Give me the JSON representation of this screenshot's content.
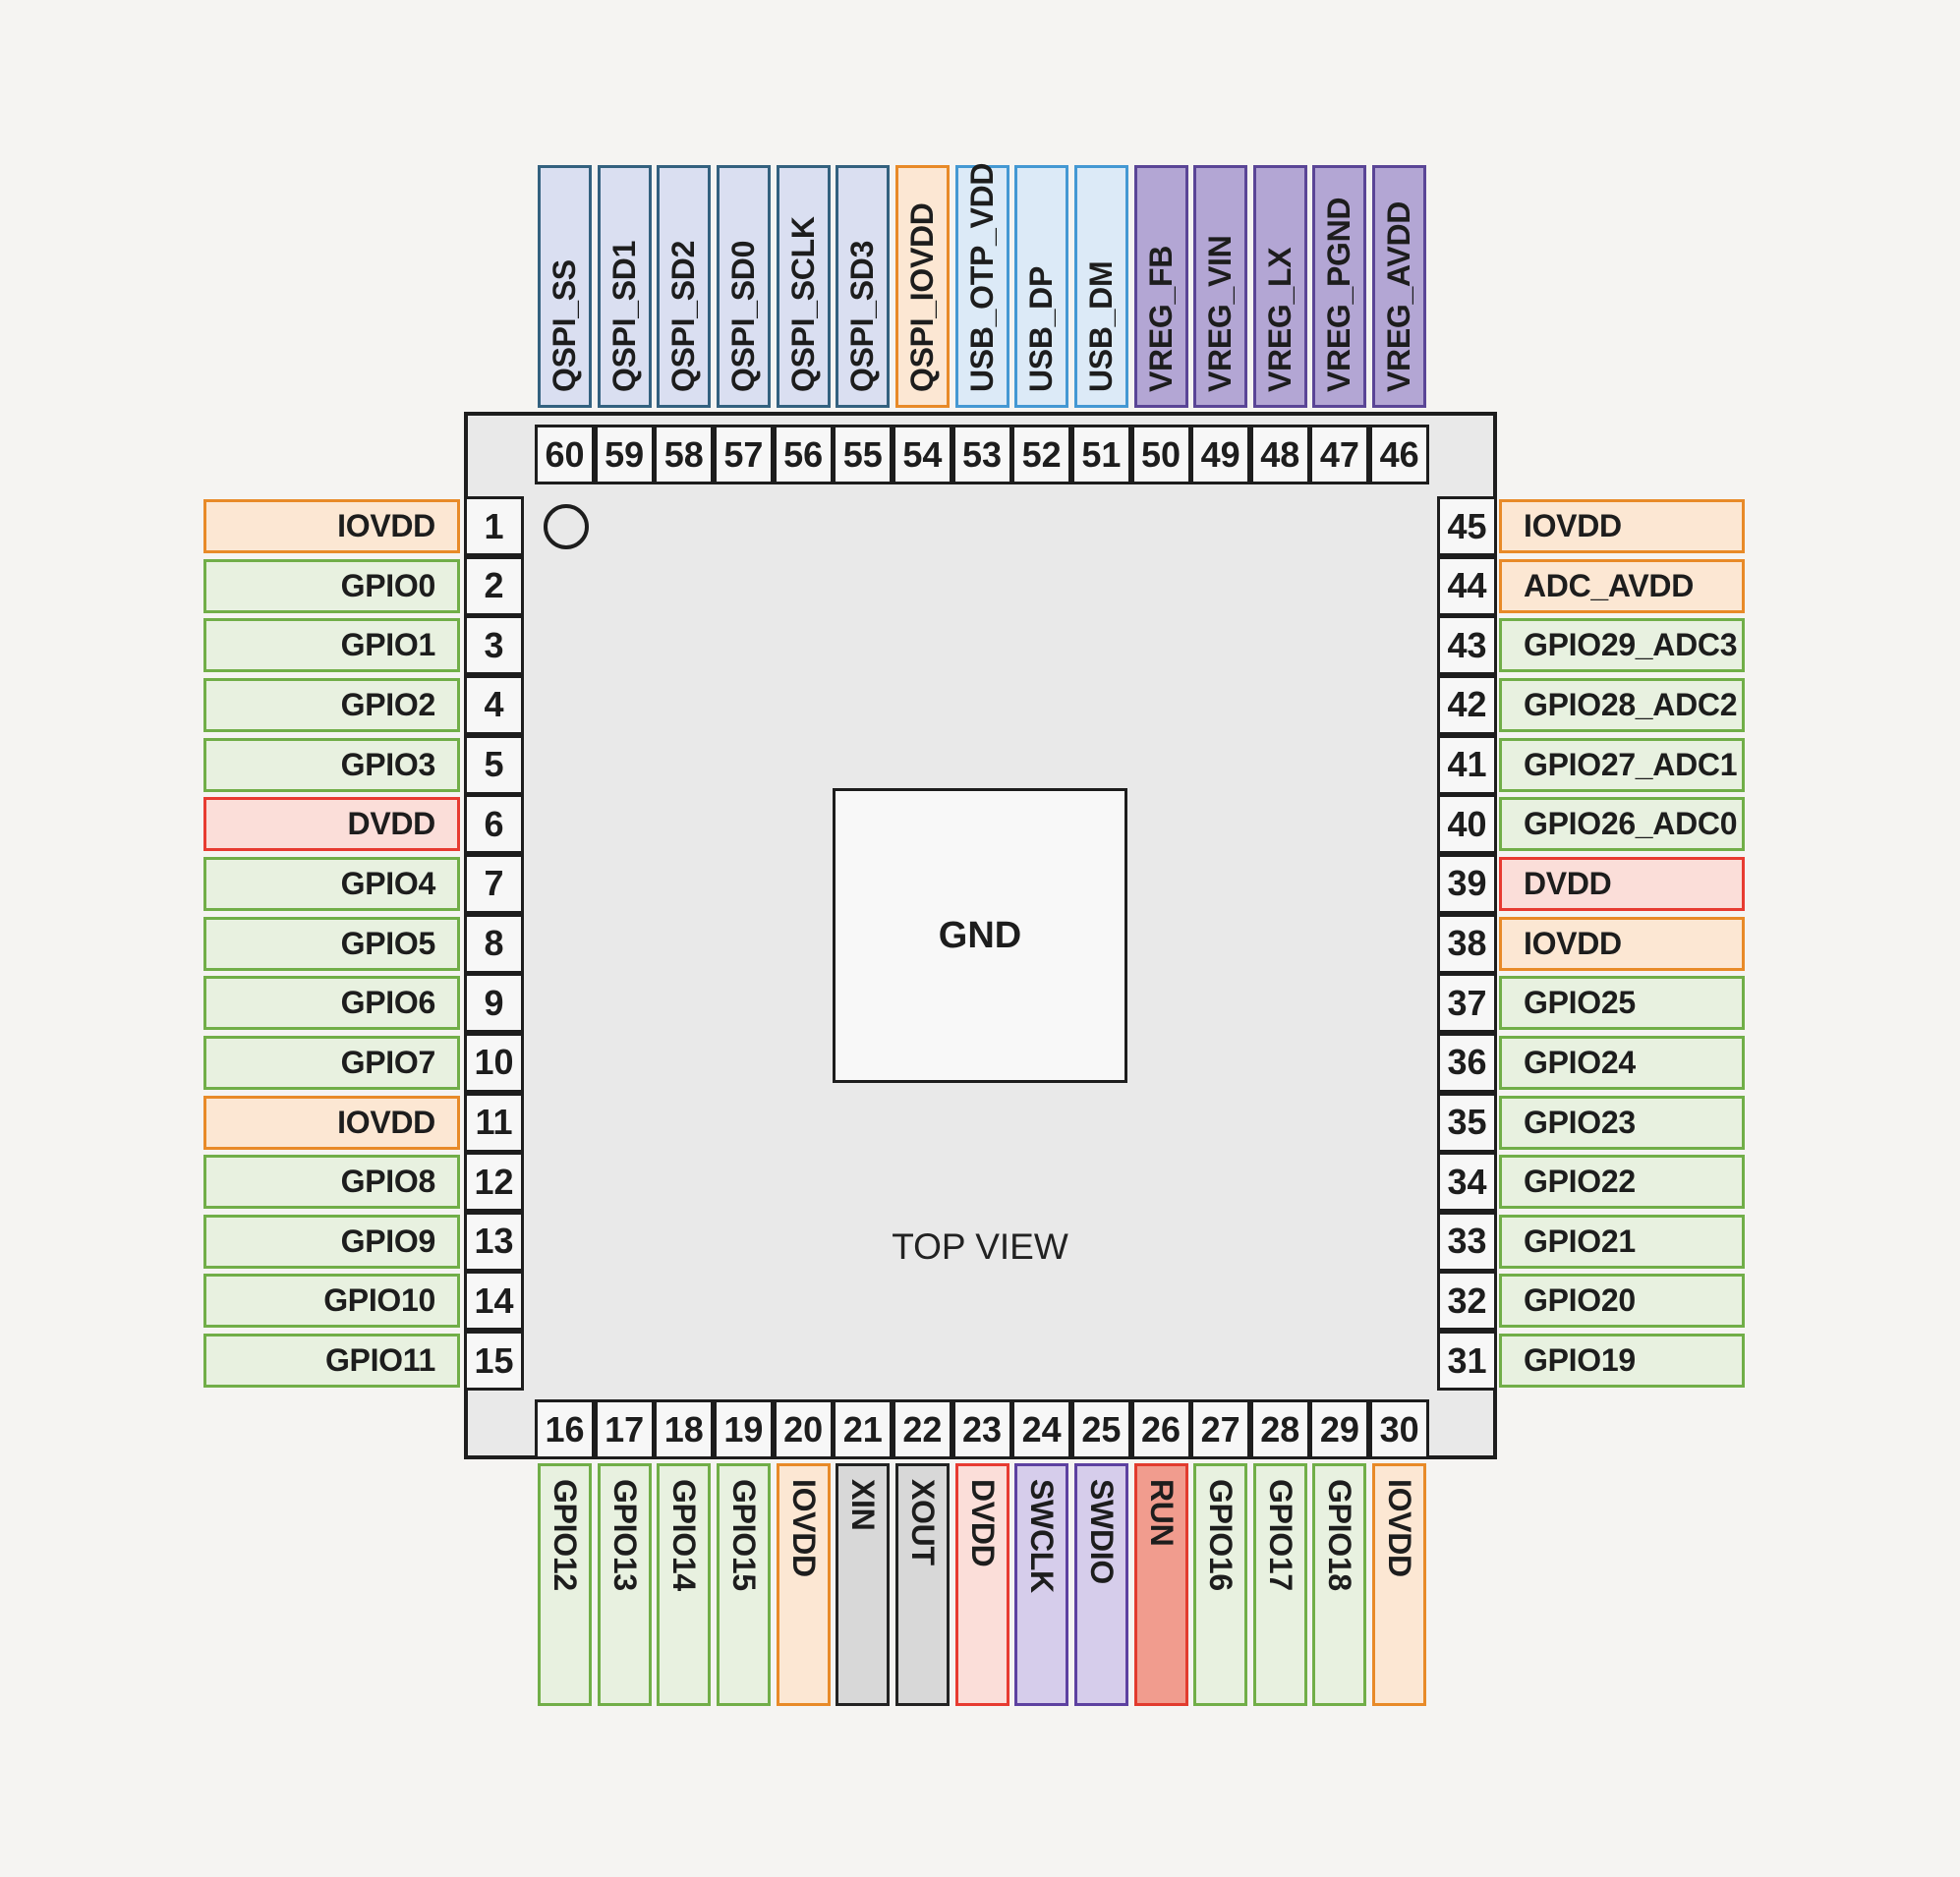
{
  "diagram": {
    "center_pad_label": "GND",
    "view_label": "TOP VIEW"
  },
  "colors": {
    "background": "#f5f4f2",
    "chip_fill": "#e9e9e9",
    "chip_border": "#1d1d1d",
    "number_box_fill": "#f7f7f7",
    "gnd_pad_fill": "#f8f8f8",
    "text": "#1d1d1d"
  },
  "categories": {
    "gpio": {
      "fill": "#e8f1e0",
      "border": "#71ae48"
    },
    "iovdd": {
      "fill": "#fce7d3",
      "border": "#e88a28"
    },
    "dvdd": {
      "fill": "#fbded9",
      "border": "#e73b31"
    },
    "qspi": {
      "fill": "#dadff1",
      "border": "#33617f"
    },
    "usb": {
      "fill": "#dceaf7",
      "border": "#4498d3"
    },
    "vreg": {
      "fill": "#b3a6d4",
      "border": "#5a4596"
    },
    "xosc": {
      "fill": "#d8d8d8",
      "border": "#222222"
    },
    "swd": {
      "fill": "#d6cdeb",
      "border": "#5d41a0"
    },
    "run": {
      "fill": "#f19c8e",
      "border": "#e23b2e"
    }
  },
  "pins": {
    "left_top_to_bottom": [
      {
        "num": "1",
        "label": "IOVDD",
        "cat": "iovdd"
      },
      {
        "num": "2",
        "label": "GPIO0",
        "cat": "gpio"
      },
      {
        "num": "3",
        "label": "GPIO1",
        "cat": "gpio"
      },
      {
        "num": "4",
        "label": "GPIO2",
        "cat": "gpio"
      },
      {
        "num": "5",
        "label": "GPIO3",
        "cat": "gpio"
      },
      {
        "num": "6",
        "label": "DVDD",
        "cat": "dvdd"
      },
      {
        "num": "7",
        "label": "GPIO4",
        "cat": "gpio"
      },
      {
        "num": "8",
        "label": "GPIO5",
        "cat": "gpio"
      },
      {
        "num": "9",
        "label": "GPIO6",
        "cat": "gpio"
      },
      {
        "num": "10",
        "label": "GPIO7",
        "cat": "gpio"
      },
      {
        "num": "11",
        "label": "IOVDD",
        "cat": "iovdd"
      },
      {
        "num": "12",
        "label": "GPIO8",
        "cat": "gpio"
      },
      {
        "num": "13",
        "label": "GPIO9",
        "cat": "gpio"
      },
      {
        "num": "14",
        "label": "GPIO10",
        "cat": "gpio"
      },
      {
        "num": "15",
        "label": "GPIO11",
        "cat": "gpio"
      }
    ],
    "bottom_left_to_right": [
      {
        "num": "16",
        "label": "GPIO12",
        "cat": "gpio"
      },
      {
        "num": "17",
        "label": "GPIO13",
        "cat": "gpio"
      },
      {
        "num": "18",
        "label": "GPIO14",
        "cat": "gpio"
      },
      {
        "num": "19",
        "label": "GPIO15",
        "cat": "gpio"
      },
      {
        "num": "20",
        "label": "IOVDD",
        "cat": "iovdd"
      },
      {
        "num": "21",
        "label": "XIN",
        "cat": "xosc"
      },
      {
        "num": "22",
        "label": "XOUT",
        "cat": "xosc"
      },
      {
        "num": "23",
        "label": "DVDD",
        "cat": "dvdd"
      },
      {
        "num": "24",
        "label": "SWCLK",
        "cat": "swd"
      },
      {
        "num": "25",
        "label": "SWDIO",
        "cat": "swd"
      },
      {
        "num": "26",
        "label": "RUN",
        "cat": "run"
      },
      {
        "num": "27",
        "label": "GPIO16",
        "cat": "gpio"
      },
      {
        "num": "28",
        "label": "GPIO17",
        "cat": "gpio"
      },
      {
        "num": "29",
        "label": "GPIO18",
        "cat": "gpio"
      },
      {
        "num": "30",
        "label": "IOVDD",
        "cat": "iovdd"
      }
    ],
    "right_top_to_bottom": [
      {
        "num": "45",
        "label": "IOVDD",
        "cat": "iovdd"
      },
      {
        "num": "44",
        "label": "ADC_AVDD",
        "cat": "iovdd"
      },
      {
        "num": "43",
        "label": "GPIO29_ADC3",
        "cat": "gpio"
      },
      {
        "num": "42",
        "label": "GPIO28_ADC2",
        "cat": "gpio"
      },
      {
        "num": "41",
        "label": "GPIO27_ADC1",
        "cat": "gpio"
      },
      {
        "num": "40",
        "label": "GPIO26_ADC0",
        "cat": "gpio"
      },
      {
        "num": "39",
        "label": "DVDD",
        "cat": "dvdd"
      },
      {
        "num": "38",
        "label": "IOVDD",
        "cat": "iovdd"
      },
      {
        "num": "37",
        "label": "GPIO25",
        "cat": "gpio"
      },
      {
        "num": "36",
        "label": "GPIO24",
        "cat": "gpio"
      },
      {
        "num": "35",
        "label": "GPIO23",
        "cat": "gpio"
      },
      {
        "num": "34",
        "label": "GPIO22",
        "cat": "gpio"
      },
      {
        "num": "33",
        "label": "GPIO21",
        "cat": "gpio"
      },
      {
        "num": "32",
        "label": "GPIO20",
        "cat": "gpio"
      },
      {
        "num": "31",
        "label": "GPIO19",
        "cat": "gpio"
      }
    ],
    "top_left_to_right": [
      {
        "num": "60",
        "label": "QSPI_SS",
        "cat": "qspi"
      },
      {
        "num": "59",
        "label": "QSPI_SD1",
        "cat": "qspi"
      },
      {
        "num": "58",
        "label": "QSPI_SD2",
        "cat": "qspi"
      },
      {
        "num": "57",
        "label": "QSPI_SD0",
        "cat": "qspi"
      },
      {
        "num": "56",
        "label": "QSPI_SCLK",
        "cat": "qspi"
      },
      {
        "num": "55",
        "label": "QSPI_SD3",
        "cat": "qspi"
      },
      {
        "num": "54",
        "label": "QSPI_IOVDD",
        "cat": "iovdd"
      },
      {
        "num": "53",
        "label": "USB_OTP_VDD",
        "cat": "usb"
      },
      {
        "num": "52",
        "label": "USB_DP",
        "cat": "usb"
      },
      {
        "num": "51",
        "label": "USB_DM",
        "cat": "usb"
      },
      {
        "num": "50",
        "label": "VREG_FB",
        "cat": "vreg"
      },
      {
        "num": "49",
        "label": "VREG_VIN",
        "cat": "vreg"
      },
      {
        "num": "48",
        "label": "VREG_LX",
        "cat": "vreg"
      },
      {
        "num": "47",
        "label": "VREG_PGND",
        "cat": "vreg"
      },
      {
        "num": "46",
        "label": "VREG_AVDD",
        "cat": "vreg"
      }
    ]
  }
}
